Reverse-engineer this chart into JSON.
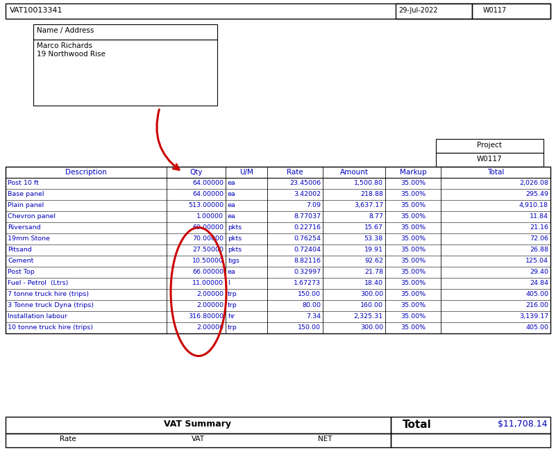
{
  "title": "VAT10013341",
  "date": "29-Jul-2022",
  "project_label": "Project",
  "project_value": "W0117",
  "address_label": "Name / Address",
  "address_line1": "Marco Richards",
  "address_line2": "19 Northwood Rise",
  "table_headers": [
    "Description",
    "Qty",
    "U/M",
    "Rate",
    "Amount",
    "Markup",
    "Total"
  ],
  "rows": [
    [
      "Post 10 ft",
      "64.00000",
      "ea",
      "23.45006",
      "1,500.80",
      "35.00%",
      "2,026.08"
    ],
    [
      "Base panel",
      "64.00000",
      "ea",
      "3.42002",
      "218.88",
      "35.00%",
      "295.49"
    ],
    [
      "Plain panel",
      "513.00000",
      "ea",
      "7.09",
      "3,637.17",
      "35.00%",
      "4,910.18"
    ],
    [
      "Chevron panel",
      "1.00000",
      "ea",
      "8.77037",
      "8.77",
      "35.00%",
      "11.84"
    ],
    [
      "Riversand",
      "69.00000",
      "pkts",
      "0.22716",
      "15.67",
      "35.00%",
      "21.16"
    ],
    [
      "19mm Stone",
      "70.00000",
      "pkts",
      "0.76254",
      "53.38",
      "35.00%",
      "72.06"
    ],
    [
      "Pitsand",
      "27.50000",
      "pkts",
      "0.72404",
      "19.91",
      "35.00%",
      "26.88"
    ],
    [
      "Cement",
      "10.50000",
      "bgs",
      "8.82116",
      "92.62",
      "35.00%",
      "125.04"
    ],
    [
      "Post Top",
      "66.00000",
      "ea",
      "0.32997",
      "21.78",
      "35.00%",
      "29.40"
    ],
    [
      "Fuel - Petrol  (Ltrs)",
      "11.00000",
      "l",
      "1.67273",
      "18.40",
      "35.00%",
      "24.84"
    ],
    [
      "7 tonne truck hire (trips)",
      "2.00000",
      "trp",
      "150.00",
      "300.00",
      "35.00%",
      "405.00"
    ],
    [
      "3 Tonne truck Dyna (trips)",
      "2.00000",
      "trp",
      "80.00",
      "160.00",
      "35.00%",
      "216.00"
    ],
    [
      "Installation labour",
      "316.80000",
      "hr",
      "7.34",
      "2,325.31",
      "35.00%",
      "3,139.17"
    ],
    [
      "10 tonne truck hire (trips)",
      "2.00000",
      "trp",
      "150.00",
      "300.00",
      "35.00%",
      "405.00"
    ]
  ],
  "vat_summary_label": "VAT Summary",
  "total_label": "Total",
  "total_value": "$11,708.14",
  "vat_sub_headers": [
    "Rate",
    "VAT",
    "NET"
  ],
  "bg_color": "#ffffff",
  "text_color_blue": "#0000bb",
  "red_color": "#cc0000",
  "fig_w": 8.01,
  "fig_h": 6.68,
  "dpi": 100
}
